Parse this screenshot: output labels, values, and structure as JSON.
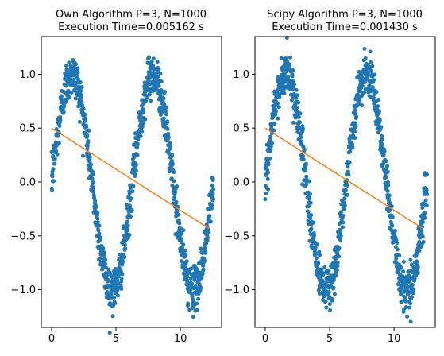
{
  "chart_data": [
    {
      "type": "scatter",
      "title": "Own Algorithm P=3, N=1000\nExecution Time=0.005162 s",
      "title_lines": [
        "Own Algorithm P=3, N=1000",
        "Execution Time=0.005162 s"
      ],
      "xlabel": "",
      "ylabel": "",
      "xlim": [
        -0.8,
        13.2
      ],
      "ylim": [
        -1.35,
        1.35
      ],
      "xticks": [
        0,
        5,
        10
      ],
      "xtick_labels": [
        "0",
        "5",
        "10"
      ],
      "yticks": [
        -1.0,
        -0.5,
        0.0,
        0.5,
        1.0
      ],
      "ytick_labels": [
        "−1.0",
        "−0.5",
        "0.0",
        "0.5",
        "1.0"
      ],
      "grid": false,
      "series": [
        {
          "kind": "scatter",
          "color": "#1f77b4",
          "x_range": [
            0,
            12.566
          ],
          "n_points": 1000,
          "shape": "sin(x) + noise"
        },
        {
          "kind": "line",
          "color": "#ff7f0e",
          "x": [
            0,
            12.2
          ],
          "y": [
            0.5,
            -0.43
          ]
        }
      ]
    },
    {
      "type": "scatter",
      "title": "Scipy Algorithm P=3, N=1000\nExecution Time=0.001430 s",
      "title_lines": [
        "Scipy Algorithm P=3, N=1000",
        "Execution Time=0.001430 s"
      ],
      "xlabel": "",
      "ylabel": "",
      "xlim": [
        -0.8,
        13.2
      ],
      "ylim": [
        -1.35,
        1.35
      ],
      "xticks": [
        0,
        5,
        10
      ],
      "xtick_labels": [
        "0",
        "5",
        "10"
      ],
      "yticks": [
        -1.0,
        -0.5,
        0.0,
        0.5,
        1.0
      ],
      "ytick_labels": [
        "−1.0",
        "−0.5",
        "0.0",
        "0.5",
        "1.0"
      ],
      "grid": false,
      "series": [
        {
          "kind": "scatter",
          "color": "#1f77b4",
          "x_range": [
            0,
            12.566
          ],
          "n_points": 1000,
          "shape": "sin(x) + noise"
        },
        {
          "kind": "line",
          "color": "#ff7f0e",
          "x": [
            0,
            12.2
          ],
          "y": [
            0.5,
            -0.43
          ]
        }
      ]
    }
  ]
}
